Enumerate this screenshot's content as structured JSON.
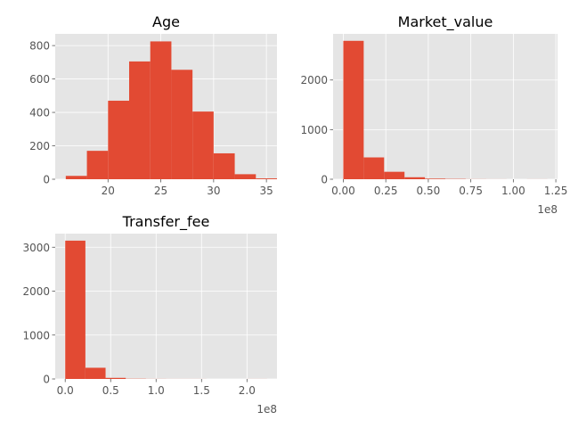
{
  "chart_data": [
    {
      "type": "bar",
      "title": "Age",
      "xlabel": "",
      "ylabel": "",
      "bins": [
        [
          16,
          18
        ],
        [
          18,
          20
        ],
        [
          20,
          22
        ],
        [
          22,
          24
        ],
        [
          24,
          26
        ],
        [
          26,
          28
        ],
        [
          28,
          30
        ],
        [
          30,
          32
        ],
        [
          32,
          34
        ],
        [
          34,
          36
        ]
      ],
      "values": [
        20,
        170,
        470,
        705,
        825,
        655,
        405,
        155,
        30,
        5
      ],
      "xlim": [
        15,
        36
      ],
      "ylim": [
        0,
        870
      ],
      "xticks": [
        20,
        25,
        30,
        35
      ],
      "xticklabels": [
        "20",
        "25",
        "30",
        "35"
      ],
      "yticks": [
        0,
        200,
        400,
        600,
        800
      ],
      "yticklabels": [
        "0",
        "200",
        "400",
        "600",
        "800"
      ],
      "offset_label": "",
      "grid": true
    },
    {
      "type": "bar",
      "title": "Market_value",
      "xlabel": "",
      "ylabel": "",
      "bins": [
        [
          0,
          0.12
        ],
        [
          0.12,
          0.24
        ],
        [
          0.24,
          0.36
        ],
        [
          0.36,
          0.48
        ],
        [
          0.48,
          0.6
        ],
        [
          0.6,
          0.72
        ],
        [
          0.72,
          0.84
        ],
        [
          0.84,
          0.96
        ],
        [
          0.96,
          1.08
        ],
        [
          1.08,
          1.2
        ]
      ],
      "values": [
        2790,
        440,
        150,
        40,
        12,
        6,
        2,
        1,
        0,
        1
      ],
      "xlim": [
        -0.06,
        1.26
      ],
      "ylim": [
        0,
        2930
      ],
      "xticks": [
        0,
        0.25,
        0.5,
        0.75,
        1.0,
        1.25
      ],
      "xticklabels": [
        "0.00",
        "0.25",
        "0.50",
        "0.75",
        "1.00",
        "1.25"
      ],
      "yticks": [
        0,
        1000,
        2000
      ],
      "yticklabels": [
        "0",
        "1000",
        "2000"
      ],
      "offset_label": "1e8",
      "grid": true
    },
    {
      "type": "bar",
      "title": "Transfer_fee",
      "xlabel": "",
      "ylabel": "",
      "bins": [
        [
          0,
          0.222
        ],
        [
          0.222,
          0.444
        ],
        [
          0.444,
          0.666
        ],
        [
          0.666,
          0.888
        ],
        [
          0.888,
          1.11
        ],
        [
          1.11,
          1.332
        ],
        [
          1.332,
          1.554
        ],
        [
          1.554,
          1.776
        ],
        [
          1.776,
          1.998
        ],
        [
          1.998,
          2.22
        ]
      ],
      "values": [
        3150,
        255,
        25,
        5,
        2,
        1,
        1,
        0,
        0,
        1
      ],
      "xlim": [
        -0.11,
        2.33
      ],
      "ylim": [
        0,
        3310
      ],
      "xticks": [
        0,
        0.5,
        1.0,
        1.5,
        2.0
      ],
      "xticklabels": [
        "0.0",
        "0.5",
        "1.0",
        "1.5",
        "2.0"
      ],
      "yticks": [
        0,
        1000,
        2000,
        3000
      ],
      "yticklabels": [
        "0",
        "1000",
        "2000",
        "3000"
      ],
      "offset_label": "1e8",
      "grid": true
    }
  ],
  "colors": {
    "bar": "#e24a33",
    "axes_bg": "#e5e5e5",
    "grid": "#ffffff",
    "tick_text": "#555555"
  }
}
